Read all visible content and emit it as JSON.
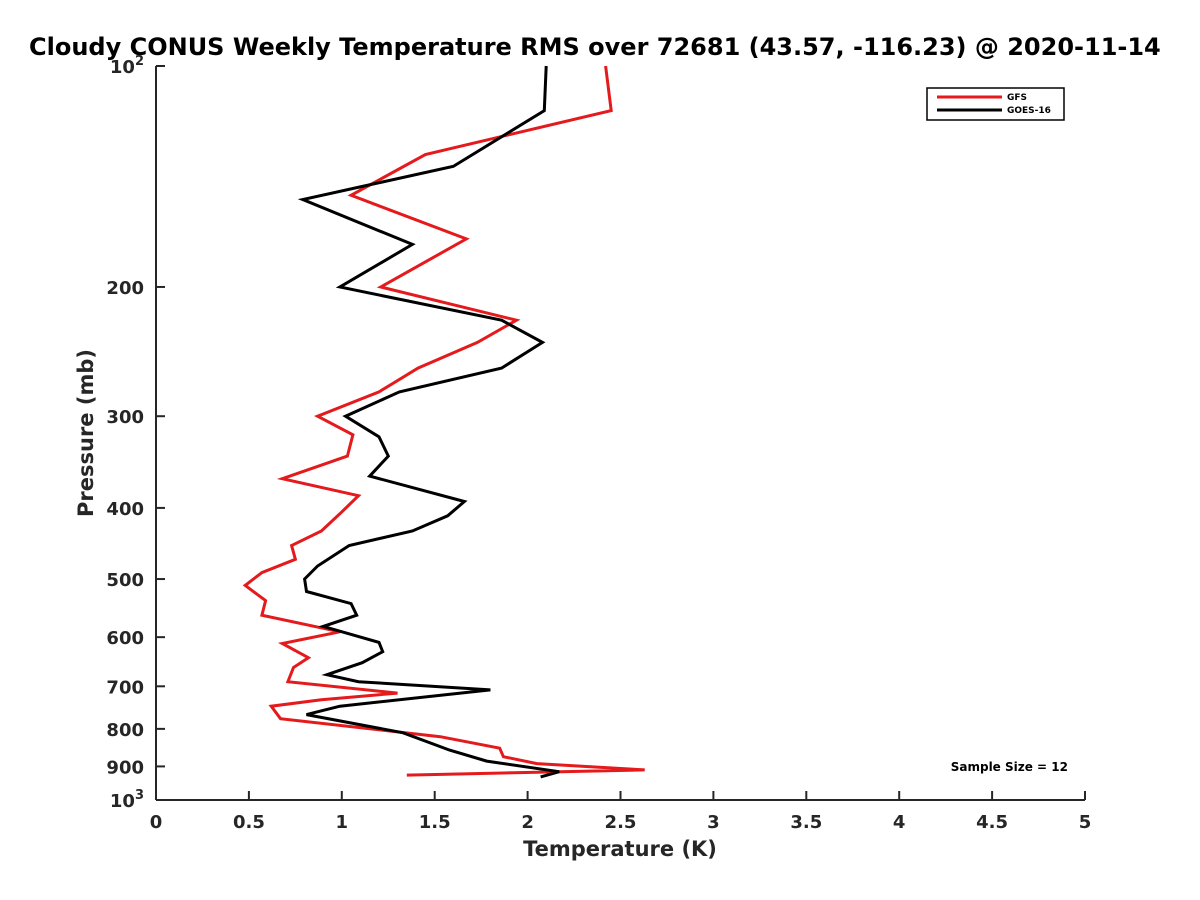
{
  "chart_data": {
    "type": "line",
    "title": "Cloudy CONUS Weekly Temperature RMS over 72681 (43.57, -116.23) @ 2020-11-14",
    "xlabel": "Temperature (K)",
    "ylabel": "Pressure (mb)",
    "xlim": [
      0,
      5
    ],
    "ylim": [
      100,
      1000
    ],
    "y_scale": "log",
    "y_reversed": true,
    "grid": false,
    "legend_position": "top-right",
    "x_ticks": [
      0,
      0.5,
      1,
      1.5,
      2,
      2.5,
      3,
      3.5,
      4,
      4.5,
      5
    ],
    "x_tick_labels": [
      "0",
      "0.5",
      "1",
      "1.5",
      "2",
      "2.5",
      "3",
      "3.5",
      "4",
      "4.5",
      "5"
    ],
    "y_ticks": [
      100,
      200,
      300,
      400,
      500,
      600,
      700,
      800,
      900,
      1000
    ],
    "y_tick_labels": [
      {
        "base": "10",
        "exp": "2"
      },
      {
        "base": "200",
        "exp": ""
      },
      {
        "base": "300",
        "exp": ""
      },
      {
        "base": "400",
        "exp": ""
      },
      {
        "base": "500",
        "exp": ""
      },
      {
        "base": "600",
        "exp": ""
      },
      {
        "base": "700",
        "exp": ""
      },
      {
        "base": "800",
        "exp": ""
      },
      {
        "base": "900",
        "exp": ""
      },
      {
        "base": "10",
        "exp": "3"
      }
    ],
    "series": [
      {
        "name": "GFS",
        "color": "#e41a1c",
        "points": [
          [
            2.42,
            100
          ],
          [
            2.45,
            115
          ],
          [
            1.45,
            132
          ],
          [
            1.05,
            150
          ],
          [
            1.67,
            172
          ],
          [
            1.21,
            200
          ],
          [
            1.94,
            222
          ],
          [
            1.73,
            238
          ],
          [
            1.41,
            258
          ],
          [
            1.2,
            278
          ],
          [
            0.87,
            300
          ],
          [
            1.06,
            318
          ],
          [
            1.03,
            340
          ],
          [
            0.68,
            365
          ],
          [
            1.09,
            385
          ],
          [
            1.0,
            405
          ],
          [
            0.89,
            430
          ],
          [
            0.73,
            450
          ],
          [
            0.75,
            470
          ],
          [
            0.57,
            490
          ],
          [
            0.48,
            510
          ],
          [
            0.59,
            535
          ],
          [
            0.57,
            560
          ],
          [
            0.99,
            590
          ],
          [
            0.68,
            612
          ],
          [
            0.82,
            640
          ],
          [
            0.74,
            660
          ],
          [
            0.71,
            690
          ],
          [
            1.3,
            715
          ],
          [
            0.89,
            730
          ],
          [
            0.62,
            745
          ],
          [
            0.67,
            775
          ],
          [
            1.53,
            820
          ],
          [
            1.85,
            850
          ],
          [
            1.87,
            873
          ],
          [
            2.05,
            892
          ],
          [
            2.63,
            910
          ],
          [
            1.35,
            925
          ]
        ]
      },
      {
        "name": "GOES-16",
        "color": "#000000",
        "points": [
          [
            2.1,
            100
          ],
          [
            2.09,
            115
          ],
          [
            1.6,
            137
          ],
          [
            0.79,
            152
          ],
          [
            1.38,
            175
          ],
          [
            0.99,
            200
          ],
          [
            1.86,
            222
          ],
          [
            2.08,
            238
          ],
          [
            1.86,
            258
          ],
          [
            1.31,
            278
          ],
          [
            1.02,
            300
          ],
          [
            1.2,
            320
          ],
          [
            1.25,
            340
          ],
          [
            1.15,
            362
          ],
          [
            1.66,
            392
          ],
          [
            1.57,
            410
          ],
          [
            1.38,
            430
          ],
          [
            1.04,
            450
          ],
          [
            0.87,
            480
          ],
          [
            0.8,
            500
          ],
          [
            0.81,
            520
          ],
          [
            1.05,
            540
          ],
          [
            1.08,
            560
          ],
          [
            0.9,
            580
          ],
          [
            1.2,
            610
          ],
          [
            1.22,
            628
          ],
          [
            1.11,
            650
          ],
          [
            0.92,
            675
          ],
          [
            1.09,
            690
          ],
          [
            1.8,
            708
          ],
          [
            0.99,
            745
          ],
          [
            0.81,
            765
          ],
          [
            1.33,
            810
          ],
          [
            1.58,
            855
          ],
          [
            1.78,
            885
          ],
          [
            2.17,
            915
          ],
          [
            2.07,
            930
          ]
        ]
      }
    ],
    "annotations": [
      {
        "text": "Sample Size = 12"
      }
    ]
  }
}
